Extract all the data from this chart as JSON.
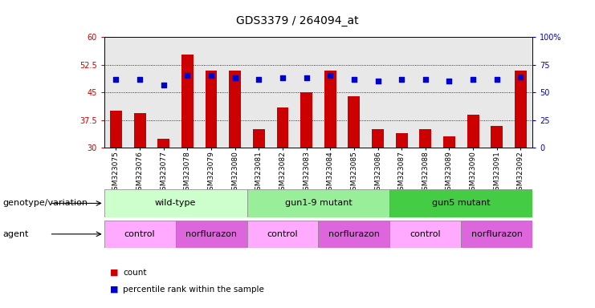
{
  "title": "GDS3379 / 264094_at",
  "samples": [
    "GSM323075",
    "GSM323076",
    "GSM323077",
    "GSM323078",
    "GSM323079",
    "GSM323080",
    "GSM323081",
    "GSM323082",
    "GSM323083",
    "GSM323084",
    "GSM323085",
    "GSM323086",
    "GSM323087",
    "GSM323088",
    "GSM323089",
    "GSM323090",
    "GSM323091",
    "GSM323092"
  ],
  "counts": [
    40.0,
    39.5,
    32.5,
    55.2,
    51.0,
    51.0,
    35.0,
    41.0,
    45.0,
    51.0,
    44.0,
    35.0,
    34.0,
    35.0,
    33.0,
    39.0,
    36.0,
    51.0
  ],
  "percentiles": [
    62,
    62,
    57,
    65,
    65,
    63,
    62,
    63,
    63,
    65,
    62,
    60,
    62,
    62,
    60,
    62,
    62,
    64
  ],
  "ylim_left": [
    30,
    60
  ],
  "ylim_right": [
    0,
    100
  ],
  "yticks_left": [
    30,
    37.5,
    45,
    52.5,
    60
  ],
  "yticks_right": [
    0,
    25,
    50,
    75,
    100
  ],
  "bar_color": "#cc0000",
  "percentile_color": "#0000cc",
  "background_color": "#ffffff",
  "plot_bg_color": "#e8e8e8",
  "grid_color": "#000000",
  "genotype_groups": [
    {
      "label": "wild-type",
      "start": 0,
      "end": 6,
      "color": "#ccffcc"
    },
    {
      "label": "gun1-9 mutant",
      "start": 6,
      "end": 12,
      "color": "#99ee99"
    },
    {
      "label": "gun5 mutant",
      "start": 12,
      "end": 18,
      "color": "#44cc44"
    }
  ],
  "agent_groups": [
    {
      "label": "control",
      "start": 0,
      "end": 3,
      "color": "#ffaaff"
    },
    {
      "label": "norflurazon",
      "start": 3,
      "end": 6,
      "color": "#dd66dd"
    },
    {
      "label": "control",
      "start": 6,
      "end": 9,
      "color": "#ffaaff"
    },
    {
      "label": "norflurazon",
      "start": 9,
      "end": 12,
      "color": "#dd66dd"
    },
    {
      "label": "control",
      "start": 12,
      "end": 15,
      "color": "#ffaaff"
    },
    {
      "label": "norflurazon",
      "start": 15,
      "end": 18,
      "color": "#dd66dd"
    }
  ],
  "genotype_label": "genotype/variation",
  "agent_label": "agent",
  "legend_count": "count",
  "legend_percentile": "percentile rank within the sample",
  "title_fontsize": 10,
  "tick_fontsize": 7,
  "label_fontsize": 8,
  "row_label_fontsize": 8,
  "legend_fontsize": 7.5
}
